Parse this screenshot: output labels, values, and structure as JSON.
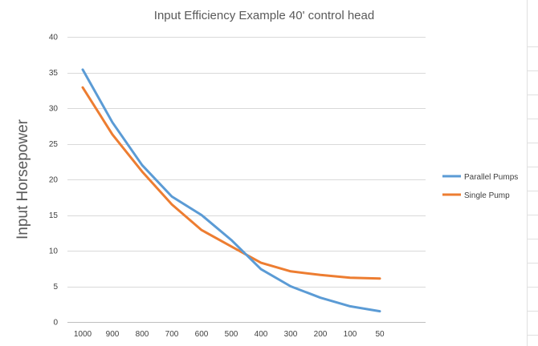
{
  "chart_data": {
    "type": "line",
    "title": "Input Efficiency Example 40' control head",
    "xlabel": "",
    "ylabel": "Input Horsepower",
    "categories": [
      "1000",
      "900",
      "800",
      "700",
      "600",
      "500",
      "400",
      "300",
      "200",
      "100",
      "50"
    ],
    "ylim": [
      0,
      40
    ],
    "yticks": [
      0,
      5,
      10,
      15,
      20,
      25,
      30,
      35,
      40
    ],
    "grid": true,
    "legend_position": "right",
    "series": [
      {
        "name": "Parallel Pumps",
        "color": "#5B9BD5",
        "values": [
          35.4,
          28.0,
          22.0,
          17.6,
          15.0,
          11.5,
          7.4,
          5.0,
          3.4,
          2.2,
          1.5
        ]
      },
      {
        "name": "Single Pump",
        "color": "#ED7D31",
        "values": [
          32.9,
          26.3,
          21.1,
          16.5,
          12.9,
          10.6,
          8.3,
          7.1,
          6.6,
          6.2,
          6.1
        ]
      }
    ]
  }
}
